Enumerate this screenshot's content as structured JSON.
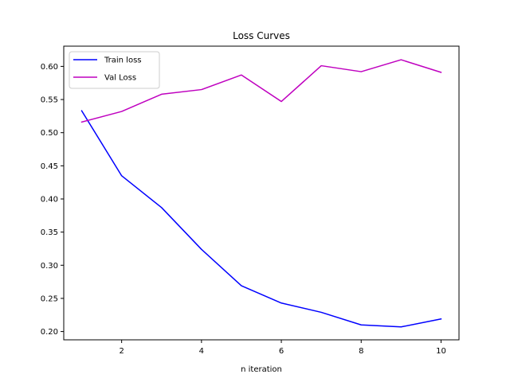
{
  "chart_data": {
    "type": "line",
    "title": "Loss Curves",
    "xlabel": "n iteration",
    "ylabel": "",
    "x": [
      1,
      2,
      3,
      4,
      5,
      6,
      7,
      8,
      9,
      10
    ],
    "xticks": [
      2,
      4,
      6,
      8,
      10
    ],
    "xlim": [
      0.55,
      10.45
    ],
    "yticks": [
      0.2,
      0.25,
      0.3,
      0.35,
      0.4,
      0.45,
      0.5,
      0.55,
      0.6
    ],
    "ylim": [
      0.1875,
      0.6305
    ],
    "grid": false,
    "legend_position": "upper-left",
    "series": [
      {
        "name": "Train loss",
        "color": "#0000ff",
        "values": [
          0.533,
          0.435,
          0.387,
          0.324,
          0.269,
          0.243,
          0.229,
          0.21,
          0.207,
          0.219
        ]
      },
      {
        "name": "Val Loss",
        "color": "#bf00bf",
        "values": [
          0.516,
          0.532,
          0.558,
          0.565,
          0.587,
          0.547,
          0.601,
          0.592,
          0.61,
          0.591
        ]
      }
    ]
  }
}
